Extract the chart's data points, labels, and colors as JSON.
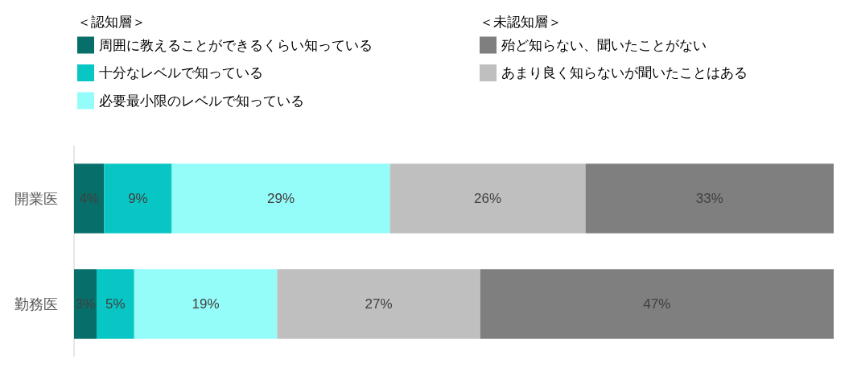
{
  "chart_data": {
    "type": "bar",
    "orientation": "horizontal",
    "stacked": true,
    "legend": "top",
    "categories": [
      "開業医",
      "勤務医"
    ],
    "series": [
      {
        "name": "周囲に教えることができるくらい知っている",
        "color": "#076e6a",
        "values": [
          4,
          3
        ],
        "value_labels": [
          "4%",
          "3%"
        ]
      },
      {
        "name": "十分なレベルで知っている",
        "color": "#08c6c3",
        "values": [
          9,
          5
        ],
        "value_labels": [
          "9%",
          "5%"
        ]
      },
      {
        "name": "必要最小限のレベルで知っている",
        "color": "#94fcf9",
        "values": [
          29,
          19
        ],
        "value_labels": [
          "29%",
          "19%"
        ]
      },
      {
        "name": "あまり良く知らないが聞いたことはある",
        "color": "#bfbfbf",
        "values": [
          26,
          27
        ],
        "value_labels": [
          "26%",
          "27%"
        ]
      },
      {
        "name": "殆ど知らない、聞いたことがない",
        "color": "#7f7f7f",
        "values": [
          33,
          47
        ],
        "value_labels": [
          "33%",
          "47%"
        ]
      }
    ],
    "annotations": [
      "＜認知層＞",
      "＜未認知層＞"
    ]
  }
}
